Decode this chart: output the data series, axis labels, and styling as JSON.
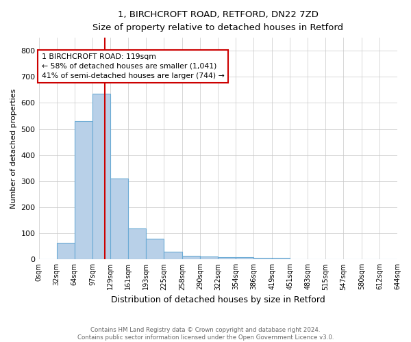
{
  "title_line1": "1, BIRCHCROFT ROAD, RETFORD, DN22 7ZD",
  "title_line2": "Size of property relative to detached houses in Retford",
  "xlabel": "Distribution of detached houses by size in Retford",
  "ylabel": "Number of detached properties",
  "footnote": "Contains HM Land Registry data © Crown copyright and database right 2024.\nContains public sector information licensed under the Open Government Licence v3.0.",
  "bin_edges": [
    0,
    32,
    64,
    97,
    129,
    161,
    193,
    225,
    258,
    290,
    322,
    354,
    386,
    419,
    451,
    483,
    515,
    547,
    580,
    612,
    644
  ],
  "bar_heights": [
    0,
    65,
    530,
    635,
    310,
    120,
    80,
    30,
    15,
    10,
    8,
    8,
    5,
    5,
    0,
    0,
    0,
    0,
    0,
    0
  ],
  "bar_color": "#b8d0e8",
  "bar_edge_color": "#6aaad4",
  "property_size": 119,
  "vline_color": "#cc0000",
  "annotation_text": "1 BIRCHCROFT ROAD: 119sqm\n← 58% of detached houses are smaller (1,041)\n41% of semi-detached houses are larger (744) →",
  "annotation_box_color": "#ffffff",
  "annotation_box_edge": "#cc0000",
  "ylim": [
    0,
    850
  ],
  "yticks": [
    0,
    100,
    200,
    300,
    400,
    500,
    600,
    700,
    800
  ],
  "background_color": "#ffffff",
  "grid_color": "#c8c8c8"
}
